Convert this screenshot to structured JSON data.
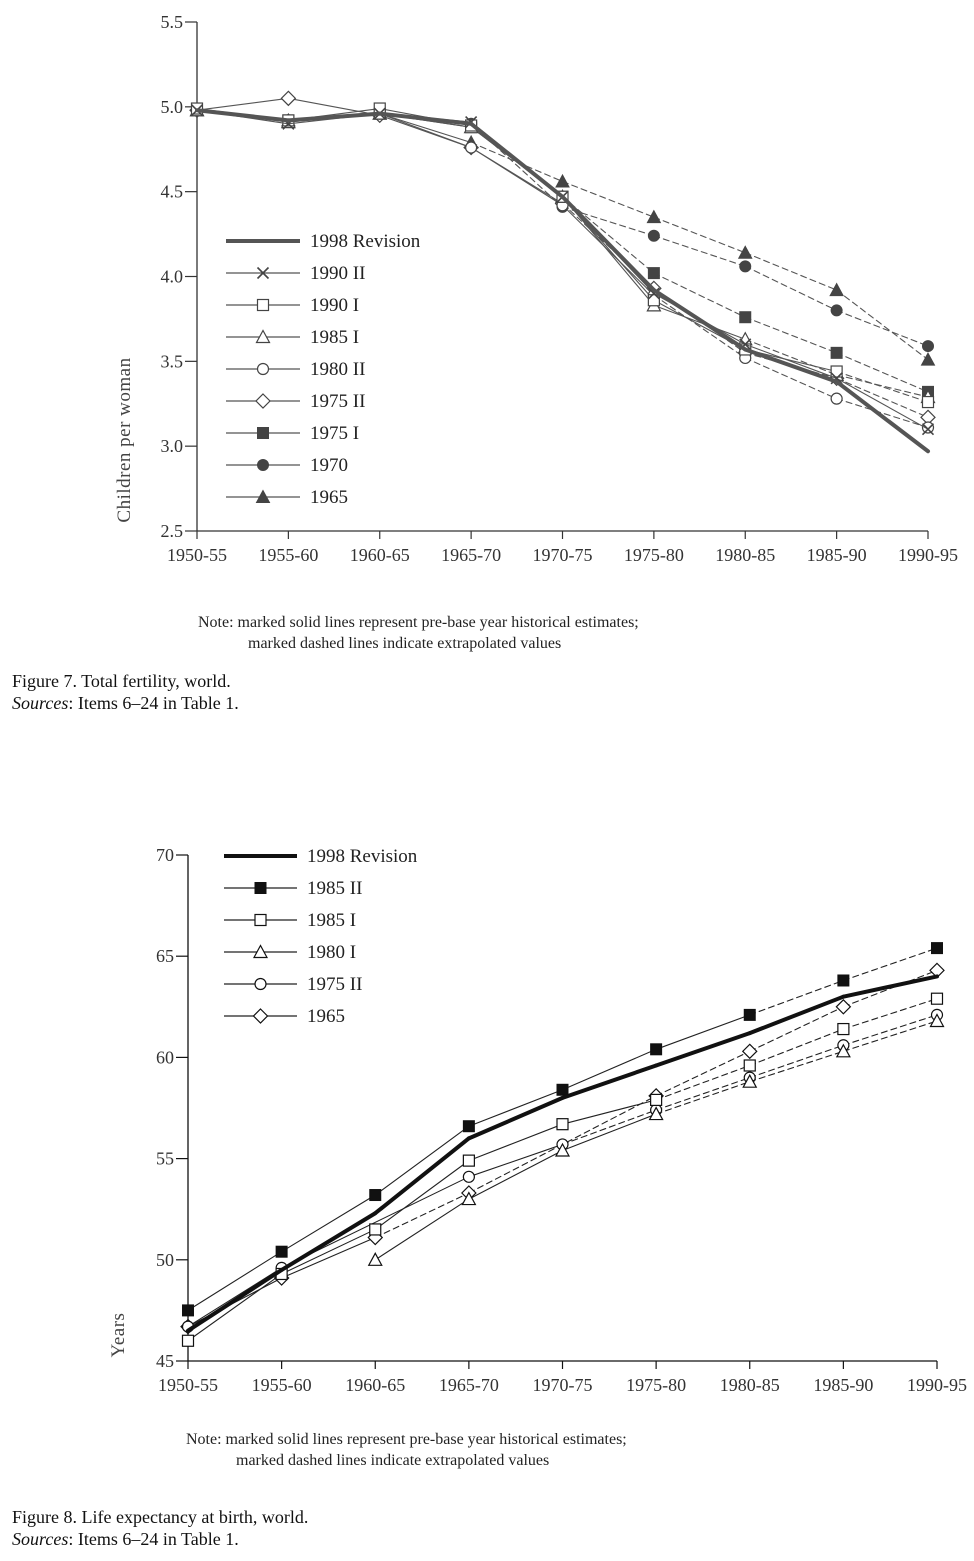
{
  "chart_data": [
    {
      "type": "line",
      "title": "Figure 7.  Total fertility, world.",
      "sources_label": "Sources",
      "sources_text": ": Items 6–24 in Table 1.",
      "ylabel": "Children per woman",
      "xlabel": "",
      "categories": [
        "1950-55",
        "1955-60",
        "1960-65",
        "1965-70",
        "1970-75",
        "1975-80",
        "1980-85",
        "1985-90",
        "1990-95"
      ],
      "ylim": [
        2.5,
        5.5
      ],
      "yticks": [
        "2.5",
        "3.0",
        "3.5",
        "4.0",
        "4.5",
        "5.0",
        "5.5"
      ],
      "note_line1": "Note:  marked solid lines represent pre-base year historical estimates;",
      "note_line2": "marked dashed lines indicate extrapolated values",
      "legend": [
        "1998 Revision",
        "1990 II",
        "1990 I",
        "1985 I",
        "1980 II",
        "1975 II",
        "1975 I",
        "1970",
        "1965"
      ],
      "series": [
        {
          "name": "1998 Revision",
          "marker": "none",
          "base_index": 8,
          "values": [
            4.98,
            4.92,
            4.96,
            4.9,
            4.47,
            3.92,
            3.57,
            3.38,
            2.97
          ]
        },
        {
          "name": "1990 II",
          "marker": "x",
          "base_index": 8,
          "values": [
            4.98,
            4.9,
            4.96,
            4.91,
            4.47,
            3.9,
            3.6,
            3.4,
            3.1
          ]
        },
        {
          "name": "1990 I",
          "marker": "square-open",
          "base_index": 7,
          "values": [
            4.99,
            4.92,
            4.99,
            4.89,
            4.47,
            3.86,
            3.57,
            3.44,
            3.26
          ]
        },
        {
          "name": "1985 I",
          "marker": "triangle-open",
          "base_index": 6,
          "values": [
            4.98,
            4.91,
            4.96,
            4.88,
            4.47,
            3.83,
            3.63,
            3.42,
            3.29
          ]
        },
        {
          "name": "1980 II",
          "marker": "circle-open",
          "base_index": 5,
          "values": [
            4.98,
            4.92,
            4.96,
            4.76,
            4.42,
            3.89,
            3.52,
            3.28,
            3.11
          ]
        },
        {
          "name": "1975 II",
          "marker": "diamond-open",
          "base_index": 4,
          "values": [
            4.98,
            5.05,
            4.95,
            4.76,
            4.43,
            3.93,
            3.55,
            3.4,
            3.17
          ]
        },
        {
          "name": "1975 I",
          "marker": "square-filled",
          "base_index": 4,
          "values": [
            4.98,
            4.92,
            4.96,
            4.88,
            4.47,
            4.02,
            3.76,
            3.55,
            3.32
          ]
        },
        {
          "name": "1970",
          "marker": "circle-filled",
          "base_index": 3,
          "values": [
            4.98,
            4.92,
            4.96,
            4.9,
            4.41,
            4.24,
            4.06,
            3.8,
            3.59
          ]
        },
        {
          "name": "1965",
          "marker": "triangle-filled",
          "base_index": 3,
          "values": [
            4.98,
            4.92,
            4.96,
            4.79,
            4.56,
            4.35,
            4.14,
            3.92,
            3.51
          ]
        }
      ]
    },
    {
      "type": "line",
      "title": "Figure 8.  Life expectancy at birth, world.",
      "sources_label": "Sources",
      "sources_text": ": Items 6–24 in Table 1.",
      "ylabel": "Years",
      "xlabel": "",
      "categories": [
        "1950-55",
        "1955-60",
        "1960-65",
        "1965-70",
        "1970-75",
        "1975-80",
        "1980-85",
        "1985-90",
        "1990-95"
      ],
      "ylim": [
        45,
        70
      ],
      "yticks": [
        "45",
        "50",
        "55",
        "60",
        "65",
        "70"
      ],
      "note_line1": "Note:  marked solid lines represent pre-base year historical estimates;",
      "note_line2": "marked dashed lines indicate extrapolated values",
      "legend": [
        "1998 Revision",
        "1985 II",
        "1985 I",
        "1980 I",
        "1975 II",
        "1965"
      ],
      "series": [
        {
          "name": "1998 Revision",
          "marker": "none",
          "base_index": 8,
          "values": [
            46.5,
            49.5,
            52.3,
            56.0,
            58.0,
            59.6,
            61.2,
            63.0,
            64.0
          ]
        },
        {
          "name": "1985 II",
          "marker": "square-filled",
          "base_index": 6,
          "values": [
            47.5,
            50.4,
            53.2,
            56.6,
            58.4,
            60.4,
            62.1,
            63.8,
            65.4
          ]
        },
        {
          "name": "1985 I",
          "marker": "square-open",
          "base_index": 5,
          "values": [
            46.0,
            49.3,
            51.5,
            54.9,
            56.7,
            57.9,
            59.6,
            61.4,
            62.9
          ]
        },
        {
          "name": "1980 I",
          "marker": "triangle-open",
          "base_index": 5,
          "values": [
            null,
            null,
            50.0,
            53.0,
            55.4,
            57.2,
            58.8,
            60.3,
            61.8
          ]
        },
        {
          "name": "1975 II",
          "marker": "circle-open",
          "base_index": 4,
          "values": [
            46.7,
            49.6,
            null,
            54.1,
            55.7,
            57.4,
            59.0,
            60.6,
            62.1
          ]
        },
        {
          "name": "1965",
          "marker": "diamond-open",
          "base_index": 2,
          "values": [
            46.7,
            49.1,
            51.1,
            53.3,
            null,
            58.1,
            60.3,
            62.5,
            64.3
          ]
        }
      ]
    }
  ]
}
